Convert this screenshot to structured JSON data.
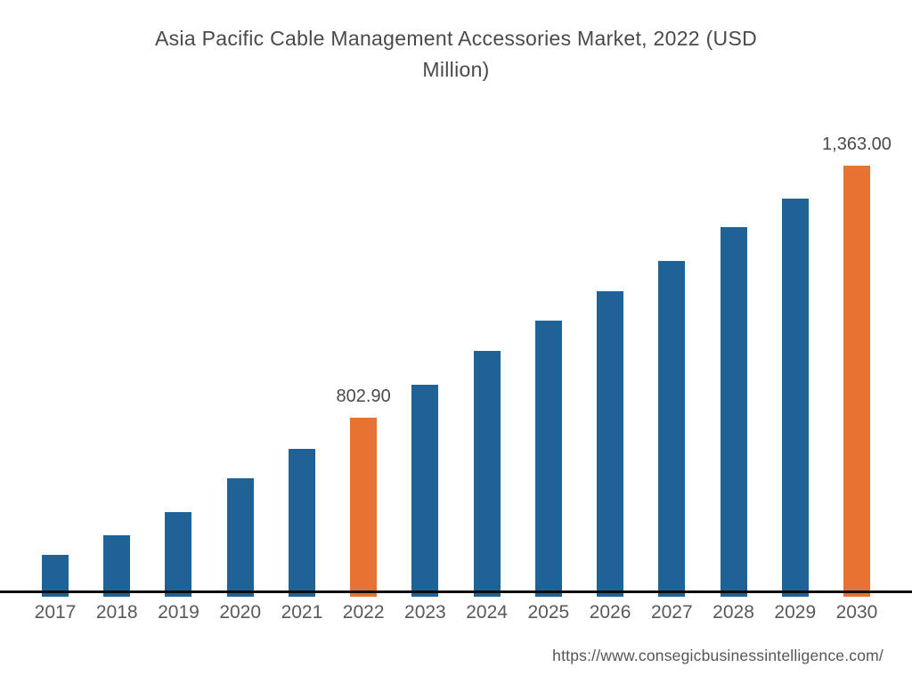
{
  "title": "Asia Pacific Cable Management Accessories Market, 2022 (USD Million)",
  "source_url": "https://www.consegicbusinessintelligence.com/",
  "chart_data": {
    "type": "bar",
    "title": "Asia Pacific Cable Management Accessories Market, 2022 (USD Million)",
    "categories": [
      "2017",
      "2018",
      "2019",
      "2020",
      "2021",
      "2022",
      "2023",
      "2024",
      "2025",
      "2026",
      "2027",
      "2028",
      "2029",
      "2030"
    ],
    "values": [
      498.0,
      541.5,
      593.0,
      668.0,
      733.5,
      802.9,
      876.0,
      951.0,
      1018.5,
      1084.0,
      1151.0,
      1226.0,
      1290.0,
      1363.0
    ],
    "value_labels": {
      "2022": "802.90",
      "2030": "1,363.00"
    },
    "highlighted_categories": [
      "2022",
      "2030"
    ],
    "xlabel": "",
    "ylabel": "",
    "ylim": [
      405,
      1363
    ],
    "grid": false,
    "legend": false,
    "colors": {
      "bar_default": "#1E6296",
      "bar_highlight": "#E87231",
      "axis": "#0B0B0B",
      "title_text": "#4A4A4A",
      "tick_text": "#58595B",
      "source_text": "#54565A"
    }
  }
}
